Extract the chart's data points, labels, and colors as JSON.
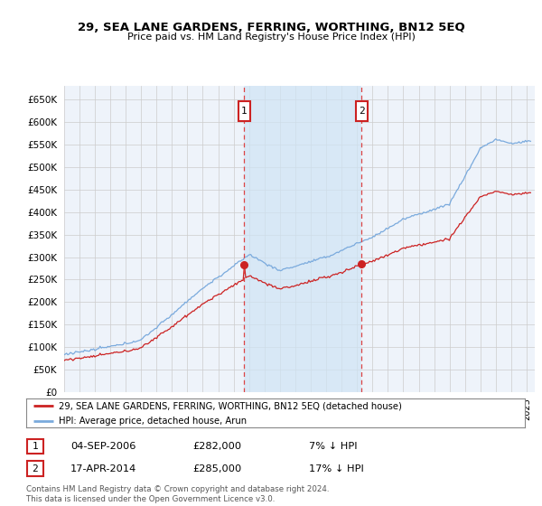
{
  "title": "29, SEA LANE GARDENS, FERRING, WORTHING, BN12 5EQ",
  "subtitle": "Price paid vs. HM Land Registry's House Price Index (HPI)",
  "ylim": [
    0,
    680000
  ],
  "yticks": [
    0,
    50000,
    100000,
    150000,
    200000,
    250000,
    300000,
    350000,
    400000,
    450000,
    500000,
    550000,
    600000,
    650000
  ],
  "xlim_start": 1995.0,
  "xlim_end": 2025.5,
  "purchase1_x": 2006.67,
  "purchase1_y": 282000,
  "purchase2_x": 2014.29,
  "purchase2_y": 285000,
  "purchase1_date": "04-SEP-2006",
  "purchase1_price": "£282,000",
  "purchase1_hpi": "7% ↓ HPI",
  "purchase2_date": "17-APR-2014",
  "purchase2_price": "£285,000",
  "purchase2_hpi": "17% ↓ HPI",
  "legend_line1": "29, SEA LANE GARDENS, FERRING, WORTHING, BN12 5EQ (detached house)",
  "legend_line2": "HPI: Average price, detached house, Arun",
  "footer1": "Contains HM Land Registry data © Crown copyright and database right 2024.",
  "footer2": "This data is licensed under the Open Government Licence v3.0.",
  "hpi_color": "#7aaadd",
  "price_color": "#cc2222",
  "bg_color": "#eef3fa",
  "shade_color": "#d0e4f5",
  "grid_color": "#cccccc",
  "dashed_line_color": "#dd4444",
  "box_color": "#cc2222"
}
